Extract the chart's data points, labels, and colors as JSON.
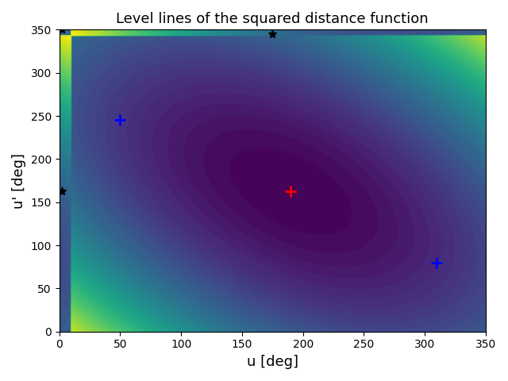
{
  "title": "Level lines of the squared distance function",
  "xlabel": "u [deg]",
  "ylabel": "u' [deg]",
  "xlim": [
    0,
    350
  ],
  "ylim": [
    0,
    350
  ],
  "xticks": [
    0,
    50,
    100,
    150,
    200,
    250,
    300,
    350
  ],
  "yticks": [
    0,
    50,
    100,
    150,
    200,
    250,
    300,
    350
  ],
  "min_point": [
    190,
    163
  ],
  "blue_points": [
    [
      50,
      245
    ],
    [
      310,
      80
    ]
  ],
  "star_points": [
    [
      2,
      350
    ],
    [
      175,
      345
    ],
    [
      2,
      163
    ]
  ],
  "n_levels": 50,
  "cmap": "viridis"
}
